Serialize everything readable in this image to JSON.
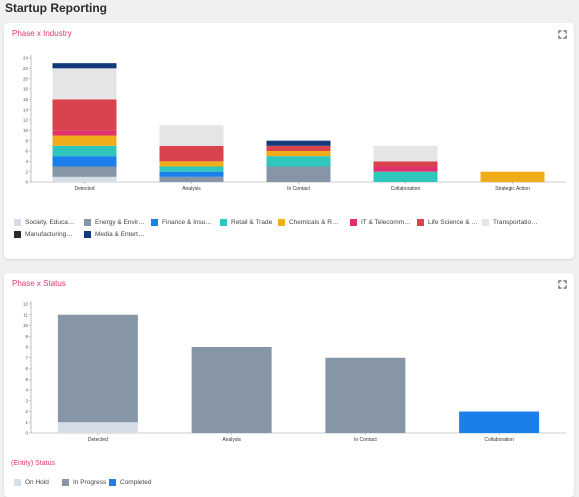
{
  "page": {
    "title": "Startup Reporting"
  },
  "icons": {
    "expand": "expand-icon"
  },
  "chart1": {
    "title": "Phase x Industry",
    "chart_data": {
      "type": "bar",
      "stacked": true,
      "categories": [
        "Detected",
        "Analysis",
        "In Contact",
        "Collaboration",
        "Strategic Action"
      ],
      "ylim": [
        0,
        24
      ],
      "yticks": [
        0,
        2,
        4,
        6,
        8,
        10,
        12,
        14,
        16,
        18,
        20,
        22,
        24
      ],
      "series": [
        {
          "name": "Society, Educa…",
          "color": "#d6dde6",
          "values": [
            1,
            0,
            0,
            0,
            0
          ]
        },
        {
          "name": "Energy & Envir…",
          "color": "#8796a6",
          "values": [
            2,
            1,
            3,
            0,
            0
          ]
        },
        {
          "name": "Finance & Insu…",
          "color": "#1a7fe8",
          "values": [
            2,
            1,
            0,
            0,
            0
          ]
        },
        {
          "name": "Retail & Trade",
          "color": "#2ec6bd",
          "values": [
            2,
            1,
            2,
            2,
            0
          ]
        },
        {
          "name": "Chemicals & R…",
          "color": "#f0ad1a",
          "values": [
            2,
            1,
            1,
            0,
            2
          ]
        },
        {
          "name": "IT & Telecomm…",
          "color": "#e0306e",
          "values": [
            1,
            0,
            0,
            1,
            0
          ]
        },
        {
          "name": "Life Science & …",
          "color": "#d9434e",
          "values": [
            6,
            3,
            1,
            1,
            0
          ]
        },
        {
          "name": "Transportatio…",
          "color": "#e5e5e5",
          "values": [
            6,
            4,
            0,
            3,
            0
          ]
        },
        {
          "name": "Manufacturing…",
          "color": "#2a2a2a",
          "values": [
            0,
            0,
            0,
            0,
            0
          ]
        },
        {
          "name": "Media & Entert…",
          "color": "#123a7a",
          "values": [
            1,
            0,
            1,
            0,
            0
          ]
        }
      ]
    }
  },
  "chart2": {
    "title": "Phase x Status",
    "legend_title": "(Entity) Status",
    "chart_data": {
      "type": "bar",
      "stacked": true,
      "categories": [
        "Detected",
        "Analysis",
        "In Contact",
        "Collaboration"
      ],
      "ylim": [
        0,
        12
      ],
      "yticks": [
        0,
        1,
        2,
        3,
        4,
        5,
        6,
        7,
        8,
        9,
        10,
        11,
        12
      ],
      "series": [
        {
          "name": "On Hold",
          "color": "#d6dde6",
          "values": [
            1,
            0,
            0,
            0
          ]
        },
        {
          "name": "In Progress",
          "color": "#8796a6",
          "values": [
            10,
            8,
            7,
            0
          ]
        },
        {
          "name": "Completed",
          "color": "#1a7fe8",
          "values": [
            0,
            0,
            0,
            2
          ]
        }
      ]
    }
  }
}
